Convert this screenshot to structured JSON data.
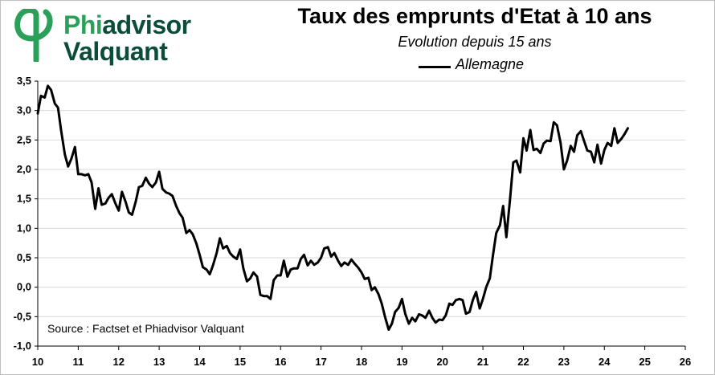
{
  "brand": {
    "line1_prefix": "Phi",
    "line1_suffix": "advisor",
    "line2": "Valquant",
    "green": "#2aa05a",
    "dark": "#0b4d3a",
    "logo_icon": "phi-swirl-logo-icon"
  },
  "chart_data": {
    "type": "line",
    "title": "Taux des emprunts d'Etat à 10 ans",
    "subtitle": "Evolution depuis 15 ans",
    "xlabel": "",
    "ylabel": "",
    "xlim": [
      2010,
      2026
    ],
    "ylim": [
      -1.0,
      3.5
    ],
    "x_ticks": [
      "10",
      "11",
      "12",
      "13",
      "14",
      "15",
      "16",
      "17",
      "18",
      "19",
      "20",
      "21",
      "22",
      "23",
      "24",
      "25",
      "26"
    ],
    "y_ticks": [
      "3,5",
      "3,0",
      "2,5",
      "2,0",
      "1,5",
      "1,0",
      "0,5",
      "0,0",
      "-0,5",
      "-1,0"
    ],
    "grid": true,
    "legend_position": "top",
    "source_note": "Source : Factset et Phiadvisor Valquant",
    "series": [
      {
        "name": "Allemagne",
        "color": "#000000",
        "points": [
          [
            2010.0,
            2.95
          ],
          [
            2010.08,
            3.25
          ],
          [
            2010.17,
            3.22
          ],
          [
            2010.25,
            3.42
          ],
          [
            2010.33,
            3.35
          ],
          [
            2010.42,
            3.12
          ],
          [
            2010.5,
            3.05
          ],
          [
            2010.58,
            2.65
          ],
          [
            2010.67,
            2.25
          ],
          [
            2010.75,
            2.05
          ],
          [
            2010.83,
            2.18
          ],
          [
            2010.92,
            2.38
          ],
          [
            2011.0,
            1.92
          ],
          [
            2011.08,
            1.92
          ],
          [
            2011.17,
            1.9
          ],
          [
            2011.25,
            1.92
          ],
          [
            2011.33,
            1.78
          ],
          [
            2011.42,
            1.33
          ],
          [
            2011.5,
            1.68
          ],
          [
            2011.58,
            1.4
          ],
          [
            2011.67,
            1.42
          ],
          [
            2011.75,
            1.52
          ],
          [
            2011.83,
            1.58
          ],
          [
            2011.92,
            1.42
          ],
          [
            2012.0,
            1.3
          ],
          [
            2012.08,
            1.62
          ],
          [
            2012.17,
            1.45
          ],
          [
            2012.25,
            1.27
          ],
          [
            2012.33,
            1.23
          ],
          [
            2012.42,
            1.45
          ],
          [
            2012.5,
            1.7
          ],
          [
            2012.58,
            1.72
          ],
          [
            2012.67,
            1.86
          ],
          [
            2012.75,
            1.76
          ],
          [
            2012.83,
            1.7
          ],
          [
            2012.92,
            1.78
          ],
          [
            2013.0,
            1.96
          ],
          [
            2013.08,
            1.67
          ],
          [
            2013.17,
            1.61
          ],
          [
            2013.25,
            1.59
          ],
          [
            2013.33,
            1.55
          ],
          [
            2013.42,
            1.38
          ],
          [
            2013.5,
            1.26
          ],
          [
            2013.58,
            1.18
          ],
          [
            2013.67,
            0.92
          ],
          [
            2013.75,
            0.97
          ],
          [
            2013.83,
            0.9
          ],
          [
            2013.92,
            0.74
          ],
          [
            2014.0,
            0.55
          ],
          [
            2014.08,
            0.34
          ],
          [
            2014.17,
            0.3
          ],
          [
            2014.25,
            0.22
          ],
          [
            2014.33,
            0.37
          ],
          [
            2014.42,
            0.58
          ],
          [
            2014.5,
            0.83
          ],
          [
            2014.58,
            0.66
          ],
          [
            2014.67,
            0.7
          ],
          [
            2014.75,
            0.58
          ],
          [
            2014.83,
            0.52
          ],
          [
            2014.92,
            0.48
          ],
          [
            2015.0,
            0.64
          ],
          [
            2015.08,
            0.32
          ],
          [
            2015.17,
            0.1
          ],
          [
            2015.25,
            0.15
          ],
          [
            2015.33,
            0.25
          ],
          [
            2015.42,
            0.18
          ],
          [
            2015.5,
            -0.13
          ],
          [
            2015.58,
            -0.15
          ],
          [
            2015.67,
            -0.15
          ],
          [
            2015.75,
            -0.2
          ],
          [
            2015.83,
            0.12
          ],
          [
            2015.92,
            0.2
          ],
          [
            2016.0,
            0.2
          ],
          [
            2016.08,
            0.45
          ],
          [
            2016.17,
            0.18
          ],
          [
            2016.25,
            0.3
          ],
          [
            2016.33,
            0.32
          ],
          [
            2016.42,
            0.32
          ],
          [
            2016.5,
            0.48
          ],
          [
            2016.58,
            0.55
          ],
          [
            2016.67,
            0.37
          ],
          [
            2016.75,
            0.45
          ],
          [
            2016.83,
            0.38
          ],
          [
            2016.92,
            0.42
          ],
          [
            2017.0,
            0.5
          ],
          [
            2017.08,
            0.66
          ],
          [
            2017.17,
            0.68
          ],
          [
            2017.25,
            0.52
          ],
          [
            2017.33,
            0.58
          ],
          [
            2017.42,
            0.45
          ],
          [
            2017.5,
            0.36
          ],
          [
            2017.58,
            0.42
          ],
          [
            2017.67,
            0.38
          ],
          [
            2017.75,
            0.47
          ],
          [
            2017.83,
            0.4
          ],
          [
            2017.92,
            0.33
          ],
          [
            2018.0,
            0.25
          ],
          [
            2018.08,
            0.14
          ],
          [
            2018.17,
            0.16
          ],
          [
            2018.25,
            -0.05
          ],
          [
            2018.33,
            0.0
          ],
          [
            2018.42,
            -0.12
          ],
          [
            2018.5,
            -0.28
          ],
          [
            2018.58,
            -0.5
          ],
          [
            2018.67,
            -0.72
          ],
          [
            2018.75,
            -0.62
          ],
          [
            2018.83,
            -0.42
          ],
          [
            2018.92,
            -0.35
          ],
          [
            2019.0,
            -0.2
          ],
          [
            2019.08,
            -0.45
          ],
          [
            2019.17,
            -0.62
          ],
          [
            2019.25,
            -0.52
          ],
          [
            2019.33,
            -0.58
          ],
          [
            2019.42,
            -0.46
          ],
          [
            2019.5,
            -0.48
          ],
          [
            2019.58,
            -0.52
          ],
          [
            2019.67,
            -0.4
          ],
          [
            2019.75,
            -0.52
          ],
          [
            2019.83,
            -0.6
          ],
          [
            2019.92,
            -0.55
          ],
          [
            2020.0,
            -0.56
          ],
          [
            2020.08,
            -0.48
          ],
          [
            2020.17,
            -0.28
          ],
          [
            2020.25,
            -0.3
          ],
          [
            2020.33,
            -0.22
          ],
          [
            2020.42,
            -0.2
          ],
          [
            2020.5,
            -0.22
          ],
          [
            2020.58,
            -0.45
          ],
          [
            2020.67,
            -0.42
          ],
          [
            2020.75,
            -0.22
          ],
          [
            2020.83,
            -0.08
          ],
          [
            2020.92,
            -0.36
          ],
          [
            2021.0,
            -0.2
          ],
          [
            2021.08,
            0.0
          ],
          [
            2021.17,
            0.15
          ],
          [
            2021.25,
            0.55
          ],
          [
            2021.33,
            0.92
          ],
          [
            2021.42,
            1.05
          ],
          [
            2021.5,
            1.38
          ],
          [
            2021.58,
            0.85
          ],
          [
            2021.67,
            1.5
          ],
          [
            2021.75,
            2.12
          ],
          [
            2021.83,
            2.15
          ],
          [
            2021.92,
            1.95
          ],
          [
            2022.0,
            2.53
          ],
          [
            2022.08,
            2.32
          ],
          [
            2022.17,
            2.67
          ],
          [
            2022.25,
            2.33
          ],
          [
            2022.33,
            2.35
          ],
          [
            2022.42,
            2.28
          ],
          [
            2022.5,
            2.44
          ],
          [
            2022.58,
            2.49
          ],
          [
            2022.67,
            2.48
          ],
          [
            2022.75,
            2.8
          ],
          [
            2022.83,
            2.75
          ],
          [
            2022.92,
            2.45
          ],
          [
            2023.0,
            2.0
          ],
          [
            2023.08,
            2.15
          ],
          [
            2023.17,
            2.4
          ],
          [
            2023.25,
            2.3
          ],
          [
            2023.33,
            2.58
          ],
          [
            2023.42,
            2.65
          ],
          [
            2023.5,
            2.48
          ],
          [
            2023.58,
            2.32
          ],
          [
            2023.67,
            2.3
          ],
          [
            2023.75,
            2.12
          ],
          [
            2023.83,
            2.42
          ],
          [
            2023.92,
            2.1
          ],
          [
            2024.0,
            2.33
          ],
          [
            2024.08,
            2.45
          ],
          [
            2024.17,
            2.4
          ],
          [
            2024.25,
            2.7
          ],
          [
            2024.33,
            2.45
          ],
          [
            2024.42,
            2.52
          ],
          [
            2024.5,
            2.6
          ],
          [
            2024.58,
            2.7
          ]
        ]
      }
    ]
  }
}
